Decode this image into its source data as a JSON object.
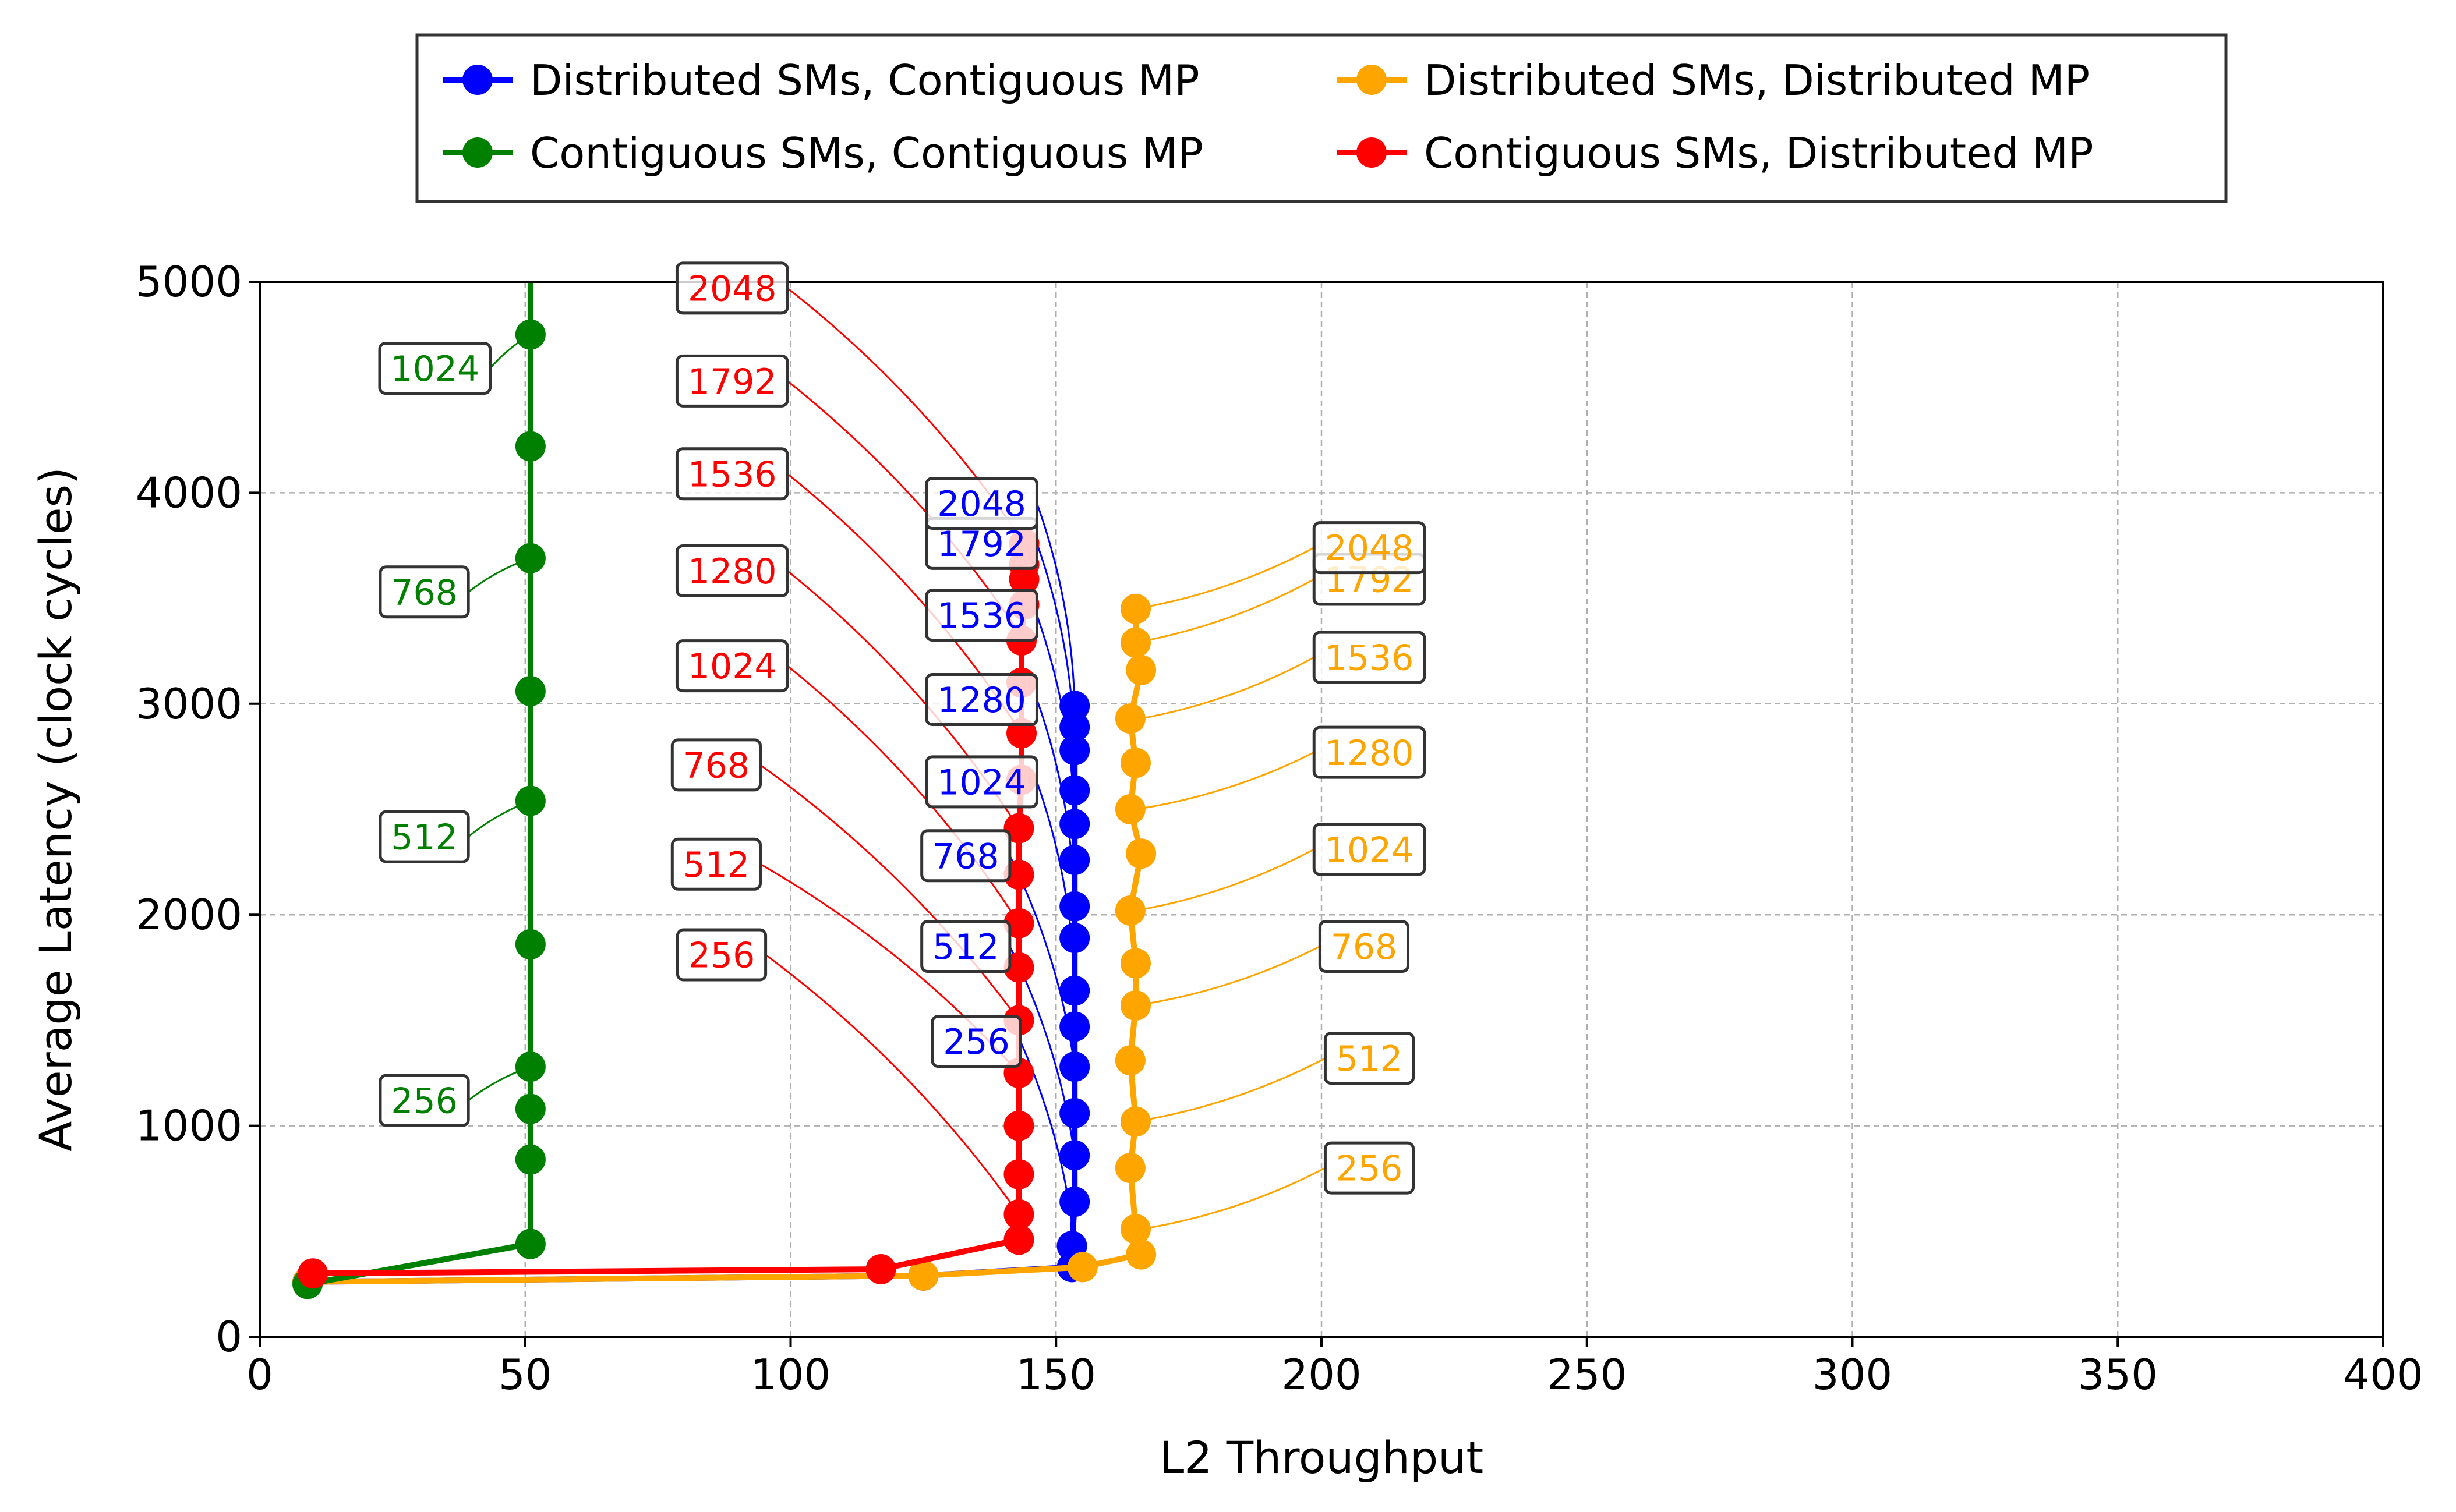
{
  "chart_data": {
    "type": "line",
    "title": "",
    "xlabel": "L2 Throughput",
    "ylabel": "Average Latency (clock cycles)",
    "xlim": [
      0,
      400
    ],
    "ylim": [
      0,
      5000
    ],
    "xticks": [
      "0",
      "50",
      "100",
      "150",
      "200",
      "250",
      "300",
      "350",
      "400"
    ],
    "yticks": [
      "0",
      "1000",
      "2000",
      "3000",
      "4000",
      "5000"
    ],
    "grid": true,
    "legend_position": "top-center, above plot",
    "series": [
      {
        "name": "Distributed SMs, Contiguous MP",
        "color": "#0000ff",
        "x": [
          9,
          125,
          153,
          153,
          153.5,
          153.5,
          153.5,
          153.5,
          153.5,
          153.5,
          153.5,
          153.5,
          153.5,
          153.5,
          153.5,
          153.5,
          153.5,
          153.5
        ],
        "y": [
          260,
          290,
          330,
          430,
          640,
          860,
          1060,
          1280,
          1470,
          1640,
          1890,
          2040,
          2260,
          2430,
          2590,
          2780,
          2890,
          2990
        ]
      },
      {
        "name": "Distributed SMs, Distributed MP",
        "color": "#ffa500",
        "x": [
          9,
          125,
          155,
          166,
          165,
          164,
          165,
          164,
          165,
          165,
          164,
          166,
          164,
          165,
          164,
          166,
          165,
          165
        ],
        "y": [
          260,
          290,
          330,
          390,
          510,
          800,
          1020,
          1310,
          1570,
          1770,
          2020,
          2290,
          2500,
          2720,
          2930,
          3160,
          3290,
          3450
        ]
      },
      {
        "name": "Contiguous SMs, Contiguous MP",
        "color": "#008000",
        "x": [
          9,
          51,
          51,
          51,
          51,
          51,
          51,
          51,
          51,
          51,
          51,
          51
        ],
        "y": [
          250,
          440,
          840,
          1080,
          1280,
          1860,
          2540,
          3060,
          3690,
          4220,
          4750,
          5000
        ]
      },
      {
        "name": "Contiguous SMs, Distributed MP",
        "color": "#ff0000",
        "x": [
          10,
          117,
          143,
          143,
          143,
          143,
          143,
          143,
          143,
          143,
          143,
          143,
          143.5,
          143.5,
          143.5,
          143.5,
          144,
          144,
          144,
          144
        ],
        "y": [
          300,
          320,
          460,
          580,
          770,
          1000,
          1250,
          1500,
          1750,
          1960,
          2190,
          2410,
          2640,
          2860,
          3100,
          3300,
          3470,
          3590,
          3660,
          3760
        ]
      }
    ],
    "annotations": [
      {
        "series": 0,
        "text": "256",
        "at": [
          153.5,
          430
        ],
        "label": [
          135,
          1400
        ]
      },
      {
        "series": 0,
        "text": "512",
        "at": [
          153.5,
          860
        ],
        "label": [
          133,
          1850
        ]
      },
      {
        "series": 0,
        "text": "768",
        "at": [
          153.5,
          1280
        ],
        "label": [
          133,
          2280
        ]
      },
      {
        "series": 0,
        "text": "1024",
        "at": [
          153.5,
          1640
        ],
        "label": [
          136,
          2630
        ]
      },
      {
        "series": 0,
        "text": "1280",
        "at": [
          153.5,
          2040
        ],
        "label": [
          136,
          3020
        ]
      },
      {
        "series": 0,
        "text": "1536",
        "at": [
          153.5,
          2430
        ],
        "label": [
          136,
          3420
        ]
      },
      {
        "series": 0,
        "text": "1792",
        "at": [
          153.5,
          2780
        ],
        "label": [
          136,
          3760
        ]
      },
      {
        "series": 0,
        "text": "2048",
        "at": [
          153.5,
          2990
        ],
        "label": [
          136,
          3950
        ]
      },
      {
        "series": 1,
        "text": "256",
        "at": [
          166,
          510
        ],
        "label": [
          209,
          800
        ]
      },
      {
        "series": 1,
        "text": "512",
        "at": [
          165,
          1020
        ],
        "label": [
          209,
          1320
        ]
      },
      {
        "series": 1,
        "text": "768",
        "at": [
          165,
          1570
        ],
        "label": [
          208,
          1850
        ]
      },
      {
        "series": 1,
        "text": "1024",
        "at": [
          165,
          2020
        ],
        "label": [
          209,
          2310
        ]
      },
      {
        "series": 1,
        "text": "1280",
        "at": [
          165,
          2500
        ],
        "label": [
          209,
          2770
        ]
      },
      {
        "series": 1,
        "text": "1536",
        "at": [
          166,
          2930
        ],
        "label": [
          209,
          3220
        ]
      },
      {
        "series": 1,
        "text": "1792",
        "at": [
          165,
          3290
        ],
        "label": [
          209,
          3590
        ]
      },
      {
        "series": 1,
        "text": "2048",
        "at": [
          165,
          3450
        ],
        "label": [
          209,
          3740
        ]
      },
      {
        "series": 2,
        "text": "256",
        "at": [
          51,
          1280
        ],
        "label": [
          31,
          1120
        ]
      },
      {
        "series": 2,
        "text": "512",
        "at": [
          51,
          2540
        ],
        "label": [
          31,
          2370
        ]
      },
      {
        "series": 2,
        "text": "768",
        "at": [
          51,
          3690
        ],
        "label": [
          31,
          3530
        ]
      },
      {
        "series": 2,
        "text": "1024",
        "at": [
          51,
          4750
        ],
        "label": [
          33,
          4590
        ]
      },
      {
        "series": 3,
        "text": "256",
        "at": [
          143,
          580
        ],
        "label": [
          87,
          1810
        ]
      },
      {
        "series": 3,
        "text": "512",
        "at": [
          143,
          1250
        ],
        "label": [
          86,
          2240
        ]
      },
      {
        "series": 3,
        "text": "768",
        "at": [
          143,
          1500
        ],
        "label": [
          86,
          2710
        ]
      },
      {
        "series": 3,
        "text": "1024",
        "at": [
          143,
          1960
        ],
        "label": [
          89,
          3180
        ]
      },
      {
        "series": 3,
        "text": "1280",
        "at": [
          143,
          2410
        ],
        "label": [
          89,
          3630
        ]
      },
      {
        "series": 3,
        "text": "1536",
        "at": [
          143.5,
          2860
        ],
        "label": [
          89,
          4090
        ]
      },
      {
        "series": 3,
        "text": "1792",
        "at": [
          144,
          3300
        ],
        "label": [
          89,
          4530
        ]
      },
      {
        "series": 3,
        "text": "2048",
        "at": [
          144,
          3760
        ],
        "label": [
          89,
          4970
        ]
      }
    ]
  }
}
